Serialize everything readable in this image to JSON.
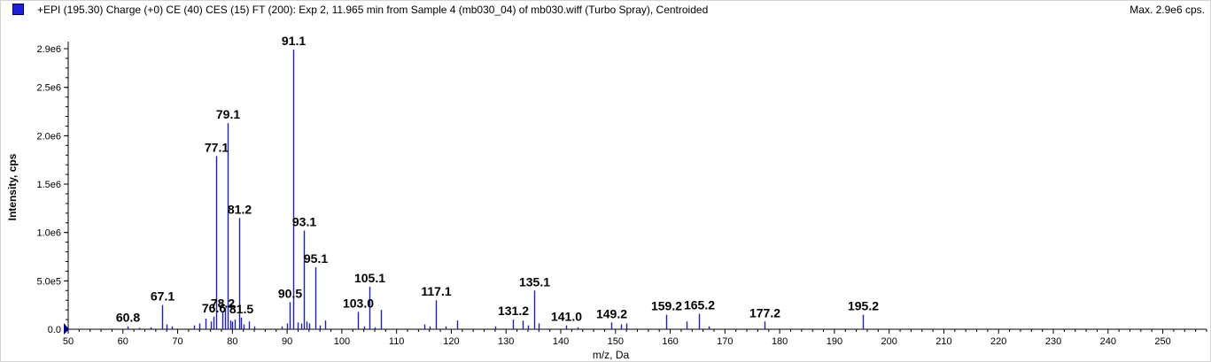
{
  "header": {
    "title": "+EPI (195.30) Charge (+0) CE (40) CES (15) FT (200): Exp 2, 11.965 min from Sample 4 (mb030_04) of mb030.wiff (Turbo Spray), Centroided",
    "max_label": "Max. 2.9e6 cps."
  },
  "colors": {
    "bars": "#1f1fb0",
    "swatch": "#1f1fd6"
  },
  "chart_data": {
    "type": "bar",
    "xlabel": "m/z, Da",
    "ylabel": "Intensity, cps",
    "xlim": [
      50,
      258
    ],
    "ylim": [
      0,
      2900000
    ],
    "x_ticks": [
      50,
      60,
      70,
      80,
      90,
      100,
      110,
      120,
      130,
      140,
      150,
      160,
      170,
      180,
      190,
      200,
      210,
      220,
      230,
      240,
      250
    ],
    "y_ticks": [
      {
        "value": 0,
        "label": "0.0"
      },
      {
        "value": 500000,
        "label": "5.0e5"
      },
      {
        "value": 1000000,
        "label": "1.0e6"
      },
      {
        "value": 1500000,
        "label": "1.5e6"
      },
      {
        "value": 2000000,
        "label": "2.0e6"
      },
      {
        "value": 2500000,
        "label": "2.5e6"
      },
      {
        "value": 2900000,
        "label": "2.9e6"
      }
    ],
    "peaks": [
      {
        "x": 60.8,
        "y": 30000,
        "label": "60.8"
      },
      {
        "x": 63.0,
        "y": 15000
      },
      {
        "x": 65.0,
        "y": 20000
      },
      {
        "x": 67.1,
        "y": 250000,
        "label": "67.1"
      },
      {
        "x": 68.0,
        "y": 50000
      },
      {
        "x": 69.0,
        "y": 30000
      },
      {
        "x": 73.0,
        "y": 40000
      },
      {
        "x": 74.0,
        "y": 60000
      },
      {
        "x": 75.1,
        "y": 110000
      },
      {
        "x": 76.0,
        "y": 80000
      },
      {
        "x": 76.6,
        "y": 130000,
        "label": "76.6"
      },
      {
        "x": 77.1,
        "y": 1790000,
        "label": "77.1"
      },
      {
        "x": 78.2,
        "y": 180000,
        "label": "78.2"
      },
      {
        "x": 78.7,
        "y": 220000
      },
      {
        "x": 79.1,
        "y": 2130000,
        "label": "79.1"
      },
      {
        "x": 79.6,
        "y": 90000
      },
      {
        "x": 80.0,
        "y": 80000
      },
      {
        "x": 80.5,
        "y": 100000
      },
      {
        "x": 81.2,
        "y": 1150000,
        "label": "81.2"
      },
      {
        "x": 81.5,
        "y": 120000,
        "label": "81.5"
      },
      {
        "x": 82.0,
        "y": 50000
      },
      {
        "x": 83.0,
        "y": 80000
      },
      {
        "x": 84.0,
        "y": 30000
      },
      {
        "x": 89.0,
        "y": 30000
      },
      {
        "x": 90.0,
        "y": 60000
      },
      {
        "x": 90.5,
        "y": 280000,
        "label": "90.5"
      },
      {
        "x": 91.1,
        "y": 2890000,
        "label": "91.1"
      },
      {
        "x": 92.0,
        "y": 70000
      },
      {
        "x": 92.5,
        "y": 60000
      },
      {
        "x": 93.1,
        "y": 1020000,
        "label": "93.1"
      },
      {
        "x": 93.5,
        "y": 80000
      },
      {
        "x": 94.0,
        "y": 60000
      },
      {
        "x": 95.1,
        "y": 640000,
        "label": "95.1"
      },
      {
        "x": 96.0,
        "y": 40000
      },
      {
        "x": 97.0,
        "y": 90000
      },
      {
        "x": 103.0,
        "y": 180000,
        "label": "103.0"
      },
      {
        "x": 104.0,
        "y": 30000
      },
      {
        "x": 105.1,
        "y": 440000,
        "label": "105.1"
      },
      {
        "x": 106.0,
        "y": 20000
      },
      {
        "x": 107.1,
        "y": 200000
      },
      {
        "x": 115.0,
        "y": 50000
      },
      {
        "x": 116.0,
        "y": 30000
      },
      {
        "x": 117.1,
        "y": 300000,
        "label": "117.1"
      },
      {
        "x": 119.0,
        "y": 30000
      },
      {
        "x": 121.0,
        "y": 90000
      },
      {
        "x": 128.0,
        "y": 30000
      },
      {
        "x": 131.2,
        "y": 100000,
        "label": "131.2"
      },
      {
        "x": 133.0,
        "y": 90000
      },
      {
        "x": 134.0,
        "y": 40000
      },
      {
        "x": 135.1,
        "y": 400000,
        "label": "135.1"
      },
      {
        "x": 136.0,
        "y": 60000
      },
      {
        "x": 141.0,
        "y": 40000,
        "label": "141.0"
      },
      {
        "x": 143.0,
        "y": 20000
      },
      {
        "x": 149.2,
        "y": 70000,
        "label": "149.2"
      },
      {
        "x": 151.0,
        "y": 50000
      },
      {
        "x": 152.0,
        "y": 60000
      },
      {
        "x": 159.2,
        "y": 150000,
        "label": "159.2"
      },
      {
        "x": 163.0,
        "y": 80000
      },
      {
        "x": 165.2,
        "y": 160000,
        "label": "165.2"
      },
      {
        "x": 167.0,
        "y": 30000
      },
      {
        "x": 177.2,
        "y": 80000,
        "label": "177.2"
      },
      {
        "x": 195.2,
        "y": 150000,
        "label": "195.2"
      }
    ]
  }
}
